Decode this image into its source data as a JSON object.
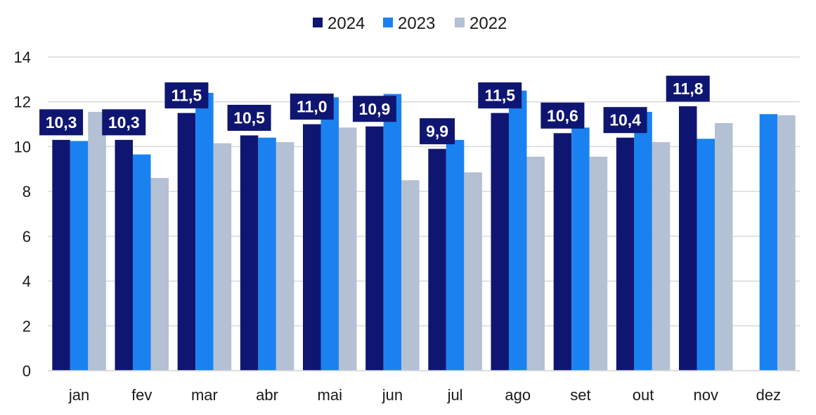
{
  "chart_data": {
    "type": "bar",
    "categories": [
      "jan",
      "fev",
      "mar",
      "abr",
      "mai",
      "jun",
      "jul",
      "ago",
      "set",
      "out",
      "nov",
      "dez"
    ],
    "series": [
      {
        "name": "2024",
        "color": "#0f1671",
        "values": [
          10.3,
          10.3,
          11.5,
          10.5,
          11.0,
          10.9,
          9.9,
          11.5,
          10.6,
          10.4,
          11.8,
          null
        ]
      },
      {
        "name": "2023",
        "color": "#1a82f0",
        "values": [
          10.25,
          9.65,
          12.4,
          10.4,
          12.2,
          12.35,
          10.3,
          12.5,
          10.85,
          11.55,
          10.35,
          11.45
        ]
      },
      {
        "name": "2022",
        "color": "#b4c0d4",
        "values": [
          11.55,
          8.6,
          10.15,
          10.2,
          10.85,
          8.5,
          8.85,
          9.55,
          9.55,
          10.2,
          11.05,
          11.4
        ]
      }
    ],
    "data_labels": [
      "10,3",
      "10,3",
      "11,5",
      "10,5",
      "11,0",
      "10,9",
      "9,9",
      "11,5",
      "10,6",
      "10,4",
      "11,8",
      ""
    ],
    "yticks": [
      "0",
      "2",
      "4",
      "6",
      "8",
      "10",
      "12",
      "14"
    ],
    "ylim": [
      0,
      14
    ],
    "grid": true,
    "legend_position": "top-center",
    "title": "",
    "xlabel": "",
    "ylabel": ""
  }
}
